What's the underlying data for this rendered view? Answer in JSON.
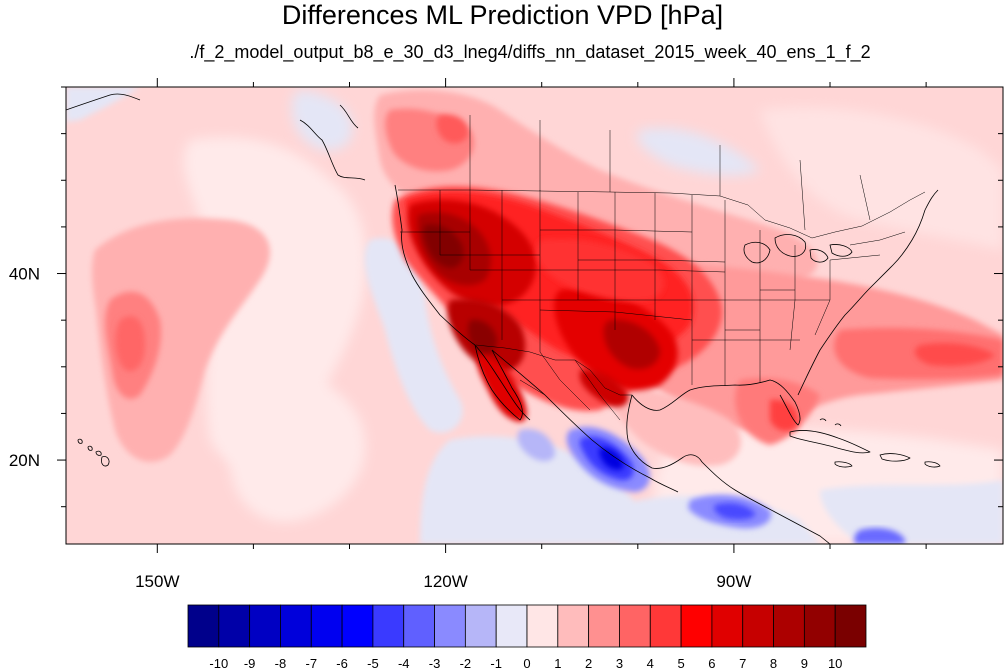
{
  "title": "Differences ML Prediction VPD [hPa]",
  "subtitle": "./f_2_model_output_b8_e_30_d3_lneg4/diffs_nn_dataset_2015_week_40_ens_1_f_2",
  "map": {
    "type": "filled-contour-map",
    "region": "North America, Eastern Pacific, Gulf of Mexico, Western Atlantic",
    "features_drawn": [
      "coastlines",
      "US state boundaries",
      "Canada-US border",
      "Mexico-US border",
      "Hawaiian Islands",
      "Caribbean islands"
    ],
    "extent": {
      "lon_min": -159.5,
      "lon_max": -62,
      "lat_min": 11,
      "lat_max": 60
    },
    "lon_ticks": [
      {
        "value": -150,
        "label": "150W"
      },
      {
        "value": -120,
        "label": "120W"
      },
      {
        "value": -90,
        "label": "90W"
      }
    ],
    "lat_ticks": [
      {
        "value": 20,
        "label": "20N"
      },
      {
        "value": 40,
        "label": "40N"
      }
    ],
    "colors": {
      "background": "#ffd6d6",
      "zero_band": "#ffeaea",
      "slightly_negative": "#e4e6f6"
    }
  },
  "colorbar": {
    "labels": [
      "-10",
      "-9",
      "-8",
      "-7",
      "-6",
      "-5",
      "-4",
      "-3",
      "-2",
      "-1",
      "0",
      "1",
      "2",
      "3",
      "4",
      "5",
      "6",
      "7",
      "8",
      "9",
      "10"
    ],
    "colors": [
      "#00008b",
      "#0000a8",
      "#0000c3",
      "#0000db",
      "#0000f0",
      "#0000ff",
      "#3a3aff",
      "#6060ff",
      "#8a8aff",
      "#b6b6f8",
      "#e8e8f8",
      "#ffe6e6",
      "#ffbcbc",
      "#ff9090",
      "#ff6464",
      "#ff3838",
      "#ff0000",
      "#e00000",
      "#c60000",
      "#ac0000",
      "#920000",
      "#7a0000"
    ]
  }
}
